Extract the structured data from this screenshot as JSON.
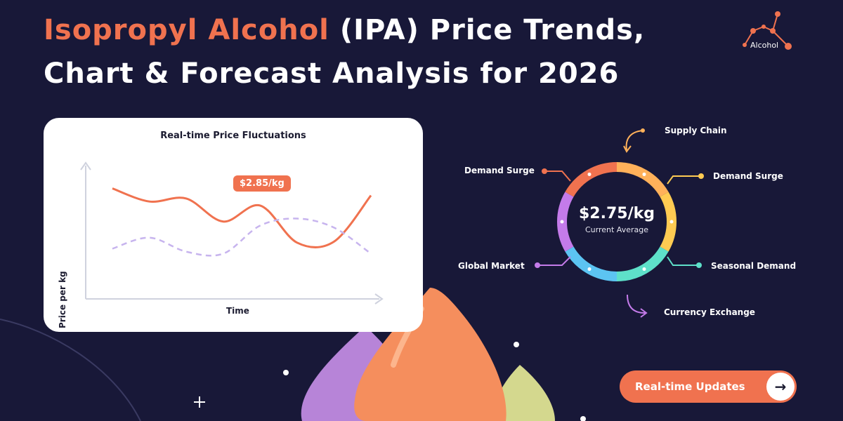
{
  "header": {
    "title_accent": "Isopropyl Alcohol",
    "title_rest": " (IPA) Price Trends,",
    "subtitle": "Chart & Forecast Analysis for 2026",
    "logo_label": "Alcohol"
  },
  "chart_data": [
    {
      "type": "line",
      "title": "Real-time Price Fluctuations",
      "xlabel": "Time",
      "ylabel": "Price per kg",
      "annotation": "$2.85/kg",
      "grid": false,
      "axis_ticks": false,
      "series": [
        {
          "style": "solid",
          "color": "#f0724f",
          "values": [
            0.87,
            0.74,
            0.77,
            0.54,
            0.7,
            0.33,
            0.34,
            0.8
          ]
        },
        {
          "style": "dashed",
          "color": "#c7b4ee",
          "values": [
            0.27,
            0.38,
            0.24,
            0.22,
            0.5,
            0.57,
            0.48,
            0.22
          ]
        }
      ]
    },
    {
      "type": "pie",
      "title": "",
      "center_value": "$2.75/kg",
      "center_label": "Current Average",
      "segments": [
        {
          "label": "Supply Chain",
          "color": "#ffb15a",
          "value": 1
        },
        {
          "label": "Demand Surge",
          "color": "#ffcb52",
          "value": 1
        },
        {
          "label": "Seasonal Demand",
          "color": "#5ee0c9",
          "value": 1
        },
        {
          "label": "Currency Exchange",
          "color": "#5cc4f2",
          "value": 1
        },
        {
          "label": "Global Market",
          "color": "#c47bea",
          "value": 1
        },
        {
          "label": "Demand Surge",
          "color": "#f0724f",
          "value": 1
        }
      ]
    }
  ],
  "cta": {
    "label": "Real-time Updates",
    "arrow": "→"
  },
  "colors": {
    "background": "#181838",
    "accent": "#f0724f"
  }
}
